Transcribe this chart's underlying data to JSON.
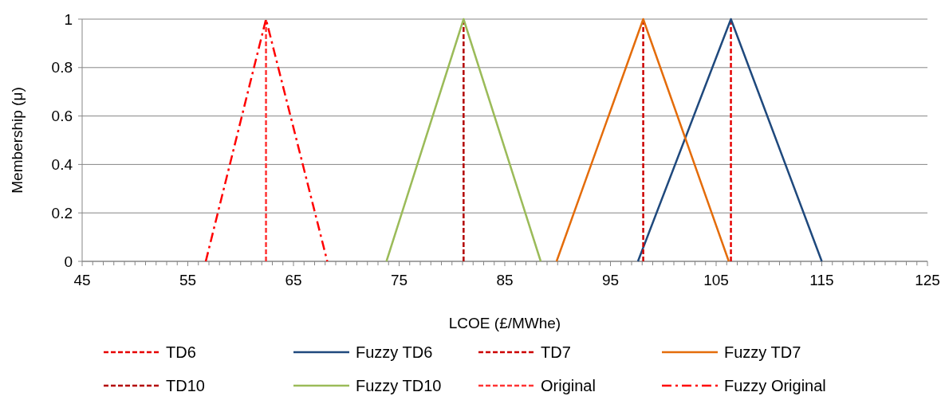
{
  "chart_data": {
    "type": "line",
    "xlabel": "LCOE (£/MWhe)",
    "ylabel": "Membership (μ)",
    "xlim": [
      45,
      125
    ],
    "ylim": [
      0,
      1
    ],
    "xticks": [
      45,
      {
        "value": 46,
        "label": null
      },
      {
        "value": 47,
        "label": null
      },
      {
        "value": 48,
        "label": null
      },
      {
        "value": 49,
        "label": null
      },
      {
        "value": 50,
        "label": null
      },
      {
        "value": 51,
        "label": null
      },
      {
        "value": 52,
        "label": null
      },
      {
        "value": 53,
        "label": null
      },
      {
        "value": 54,
        "label": null
      },
      55,
      {
        "value": 56,
        "label": null
      },
      {
        "value": 57,
        "label": null
      },
      {
        "value": 58,
        "label": null
      },
      {
        "value": 59,
        "label": null
      },
      {
        "value": 60,
        "label": null
      },
      {
        "value": 61,
        "label": null
      },
      {
        "value": 62,
        "label": null
      },
      {
        "value": 63,
        "label": null
      },
      {
        "value": 64,
        "label": null
      },
      65,
      {
        "value": 66,
        "label": null
      },
      {
        "value": 67,
        "label": null
      },
      {
        "value": 68,
        "label": null
      },
      {
        "value": 69,
        "label": null
      },
      {
        "value": 70,
        "label": null
      },
      {
        "value": 71,
        "label": null
      },
      {
        "value": 72,
        "label": null
      },
      {
        "value": 73,
        "label": null
      },
      {
        "value": 74,
        "label": null
      },
      75,
      {
        "value": 76,
        "label": null
      },
      {
        "value": 77,
        "label": null
      },
      {
        "value": 78,
        "label": null
      },
      {
        "value": 79,
        "label": null
      },
      {
        "value": 80,
        "label": null
      },
      {
        "value": 81,
        "label": null
      },
      {
        "value": 82,
        "label": null
      },
      {
        "value": 83,
        "label": null
      },
      {
        "value": 84,
        "label": null
      },
      85,
      {
        "value": 86,
        "label": null
      },
      {
        "value": 87,
        "label": null
      },
      {
        "value": 88,
        "label": null
      },
      {
        "value": 89,
        "label": null
      },
      {
        "value": 90,
        "label": null
      },
      {
        "value": 91,
        "label": null
      },
      {
        "value": 92,
        "label": null
      },
      {
        "value": 93,
        "label": null
      },
      {
        "value": 94,
        "label": null
      },
      95,
      {
        "value": 96,
        "label": null
      },
      {
        "value": 97,
        "label": null
      },
      {
        "value": 98,
        "label": null
      },
      {
        "value": 99,
        "label": null
      },
      {
        "value": 100,
        "label": null
      },
      {
        "value": 101,
        "label": null
      },
      {
        "value": 102,
        "label": null
      },
      {
        "value": 103,
        "label": null
      },
      {
        "value": 104,
        "label": null
      },
      105,
      {
        "value": 106,
        "label": null
      },
      {
        "value": 107,
        "label": null
      },
      {
        "value": 108,
        "label": null
      },
      {
        "value": 109,
        "label": null
      },
      {
        "value": 110,
        "label": null
      },
      {
        "value": 111,
        "label": null
      },
      {
        "value": 112,
        "label": null
      },
      {
        "value": 113,
        "label": null
      },
      {
        "value": 114,
        "label": null
      },
      115,
      {
        "value": 116,
        "label": null
      },
      {
        "value": 117,
        "label": null
      },
      {
        "value": 118,
        "label": null
      },
      {
        "value": 119,
        "label": null
      },
      {
        "value": 120,
        "label": null
      },
      {
        "value": 121,
        "label": null
      },
      {
        "value": 122,
        "label": null
      },
      {
        "value": 123,
        "label": null
      },
      {
        "value": 124,
        "label": null
      },
      125
    ],
    "yticks": [
      0,
      0.2,
      0.4,
      0.6,
      0.8,
      1
    ],
    "grid": "y",
    "legend": "bottom",
    "marker": "none",
    "series": [
      {
        "name": "TD6",
        "color": "#e60000",
        "line_style": "dashed",
        "x": [
          106.4,
          106.4
        ],
        "values": [
          0,
          1
        ]
      },
      {
        "name": "Fuzzy TD6",
        "color": "#1f497d",
        "line_style": "solid",
        "x": [
          97.6,
          106.4,
          115.0
        ],
        "values": [
          0,
          1,
          0
        ]
      },
      {
        "name": "TD7",
        "color": "#cc0000",
        "line_style": "dashed",
        "x": [
          98.1,
          98.1
        ],
        "values": [
          0,
          1
        ]
      },
      {
        "name": "Fuzzy TD7",
        "color": "#e46c0a",
        "line_style": "solid",
        "x": [
          89.9,
          98.1,
          106.2
        ],
        "values": [
          0,
          1,
          0
        ]
      },
      {
        "name": "TD10",
        "color": "#b30000",
        "line_style": "dashed",
        "x": [
          81.1,
          81.1
        ],
        "values": [
          0,
          1
        ]
      },
      {
        "name": "Fuzzy TD10",
        "color": "#9bbb59",
        "line_style": "solid",
        "x": [
          73.8,
          81.1,
          88.4
        ],
        "values": [
          0,
          1,
          0
        ]
      },
      {
        "name": "Original",
        "color": "#ff3333",
        "line_style": "dashed",
        "x": [
          62.4,
          62.4
        ],
        "values": [
          0,
          1
        ]
      },
      {
        "name": "Fuzzy Original",
        "color": "#ff0000",
        "line_style": "dashdot",
        "x": [
          56.7,
          62.4,
          68.2
        ],
        "values": [
          0,
          1,
          0
        ]
      }
    ]
  }
}
